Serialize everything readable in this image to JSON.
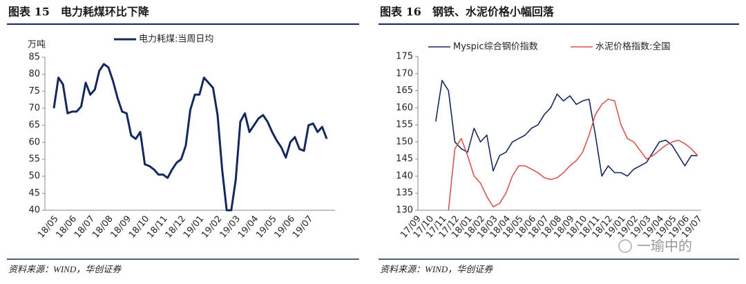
{
  "chart_data": [
    {
      "type": "line",
      "title": "图表 15　电力耗煤环比下降",
      "ylabel": "万吨",
      "source": "资料来源：WIND，华创证券",
      "categories": [
        "18/05",
        null,
        null,
        null,
        "18/06",
        null,
        null,
        null,
        "18/07",
        null,
        null,
        null,
        "18/08",
        null,
        null,
        null,
        "18/09",
        null,
        null,
        null,
        "18/10",
        null,
        null,
        null,
        "18/11",
        null,
        null,
        null,
        "18/12",
        null,
        null,
        null,
        "19/01",
        null,
        null,
        null,
        "19/02",
        null,
        null,
        null,
        "19/03",
        null,
        null,
        null,
        "19/04",
        null,
        null,
        null,
        "19/05",
        null,
        null,
        null,
        "19/06",
        null,
        null,
        null,
        "19/07",
        null,
        null,
        null,
        null
      ],
      "series": [
        {
          "name": "电力耗煤:当周日均",
          "color": "#14285f",
          "values": [
            70,
            79,
            77,
            68.5,
            69,
            69,
            70.5,
            77.5,
            74,
            75.5,
            81,
            83,
            82,
            78,
            73,
            69,
            68.5,
            62,
            61,
            63,
            53.5,
            53,
            52,
            50.5,
            50.5,
            49.5,
            52,
            54,
            55,
            59,
            69.5,
            74,
            74,
            79,
            77.5,
            76,
            68,
            52,
            40,
            40,
            49,
            66,
            68.5,
            63,
            65,
            67,
            68,
            66,
            63,
            60.5,
            58.5,
            55.5,
            60,
            61.5,
            58,
            57.5,
            65,
            65.5,
            63,
            64.5,
            61
          ]
        }
      ],
      "ylim": [
        40,
        85
      ],
      "yticks": [
        40,
        45,
        50,
        55,
        60,
        65,
        70,
        75,
        80,
        85
      ]
    },
    {
      "type": "line",
      "title": "图表 16　钢铁、水泥价格小幅回落",
      "source": "资料来源：WIND，华创证券",
      "categories": [
        "17/09",
        null,
        "17/10",
        null,
        "17/11",
        null,
        "17/12",
        null,
        "18/01",
        null,
        "18/02",
        null,
        "18/03",
        null,
        "18/04",
        null,
        "18/05",
        null,
        "18/06",
        null,
        "18/07",
        null,
        "18/08",
        null,
        "18/09",
        null,
        "18/10",
        null,
        "18/11",
        null,
        "18/12",
        null,
        "19/01",
        null,
        "19/02",
        null,
        "19/03",
        null,
        "19/04",
        null,
        "19/05",
        null,
        "19/06",
        null,
        "19/07"
      ],
      "series": [
        {
          "name": "Myspic综合钢价指数",
          "color": "#14285f",
          "values": [
            null,
            null,
            null,
            156,
            168,
            165,
            150,
            148,
            147,
            154,
            150,
            152,
            141.5,
            146,
            147,
            150,
            151,
            152,
            154,
            155,
            158,
            160,
            164,
            162,
            163.5,
            161,
            162,
            162.5,
            152,
            140,
            143,
            141,
            141,
            140,
            142,
            143,
            144,
            147,
            150,
            150.5,
            149,
            146,
            143,
            146,
            146
          ]
        },
        {
          "name": "水泥价格指数:全国",
          "color": "#d9534f",
          "values": [
            null,
            null,
            null,
            null,
            null,
            130,
            148,
            151,
            146,
            140,
            138,
            134,
            131,
            132,
            135,
            140,
            143,
            143,
            142,
            141,
            139.5,
            139,
            139.5,
            141,
            143,
            144.5,
            147,
            152,
            158,
            161,
            162.5,
            162,
            155,
            151,
            150,
            147.5,
            145,
            146,
            147.5,
            149,
            150,
            150.5,
            149.5,
            148,
            146
          ]
        }
      ],
      "ylim": [
        130,
        175
      ],
      "yticks": [
        130,
        135,
        140,
        145,
        150,
        155,
        160,
        165,
        170,
        175
      ]
    }
  ],
  "watermark": "一瑜中的"
}
